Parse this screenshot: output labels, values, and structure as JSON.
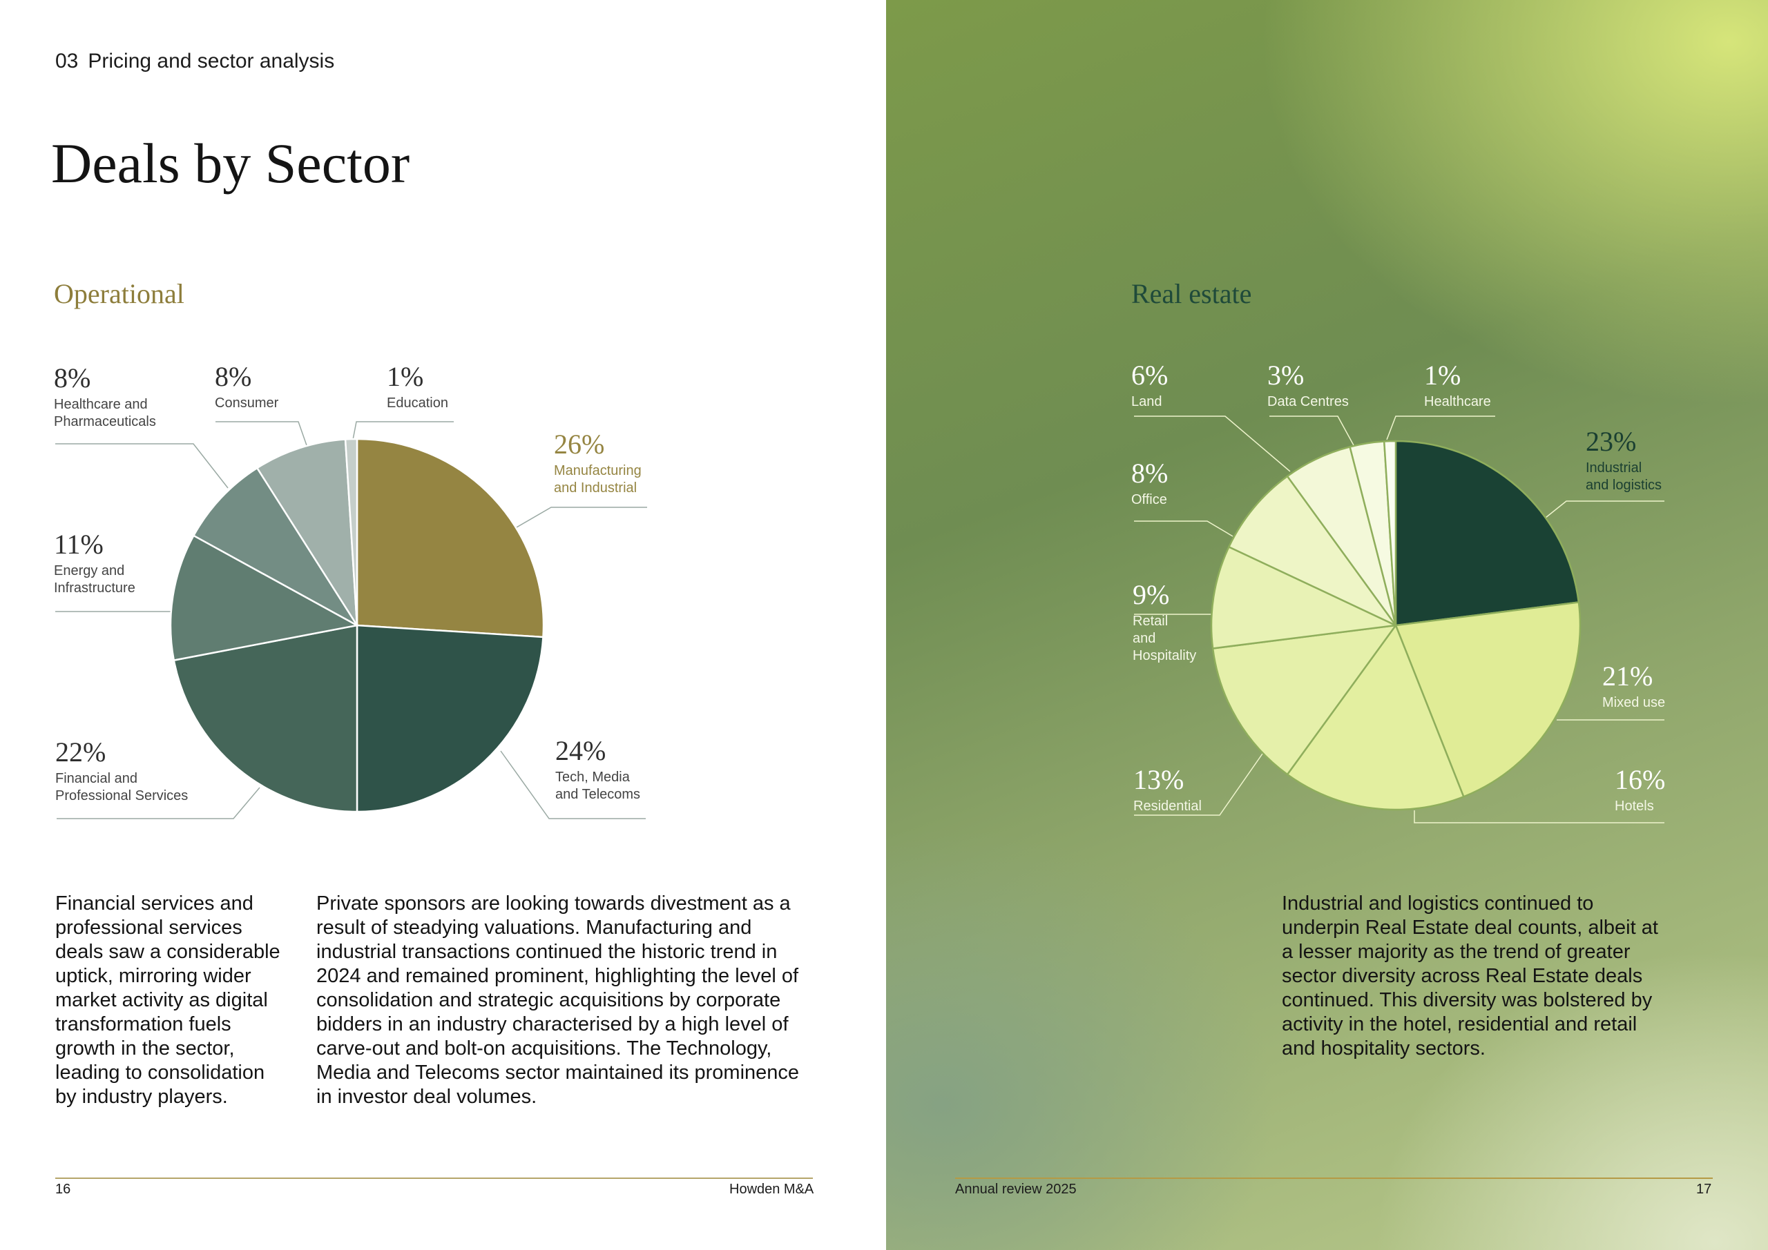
{
  "header": {
    "section_number": "03",
    "section_title": "Pricing and sector analysis"
  },
  "page_title": "Deals by Sector",
  "chart_data": [
    {
      "type": "pie",
      "title": "Operational",
      "unit": "%",
      "slices": [
        {
          "label": "Manufacturing and Industrial",
          "value": 26,
          "display": "26%",
          "lines": [
            "Manufacturing",
            "and Industrial"
          ],
          "color": "#958542"
        },
        {
          "label": "Tech, Media and Telecoms",
          "value": 24,
          "display": "24%",
          "lines": [
            "Tech, Media",
            "and Telecoms"
          ],
          "color": "#2f5349"
        },
        {
          "label": "Financial and Professional Services",
          "value": 22,
          "display": "22%",
          "lines": [
            "Financial and",
            "Professional Services"
          ],
          "color": "#456659"
        },
        {
          "label": "Energy and Infrastructure",
          "value": 11,
          "display": "11%",
          "lines": [
            "Energy and",
            "Infrastructure"
          ],
          "color": "#607d71"
        },
        {
          "label": "Healthcare and Pharmaceuticals",
          "value": 8,
          "display": "8%",
          "lines": [
            "Healthcare and",
            "Pharmaceuticals"
          ],
          "color": "#738d84"
        },
        {
          "label": "Consumer",
          "value": 8,
          "display": "8%",
          "lines": [
            "Consumer"
          ],
          "color": "#a0b0aa"
        },
        {
          "label": "Education",
          "value": 1,
          "display": "1%",
          "lines": [
            "Education"
          ],
          "color": "#c5ceca"
        }
      ]
    },
    {
      "type": "pie",
      "title": "Real estate",
      "unit": "%",
      "slices": [
        {
          "label": "Industrial and logistics",
          "value": 23,
          "display": "23%",
          "lines": [
            "Industrial",
            "and logistics"
          ],
          "color": "#1a4234"
        },
        {
          "label": "Mixed use",
          "value": 21,
          "display": "21%",
          "lines": [
            "Mixed use"
          ],
          "color": "#e0ec96"
        },
        {
          "label": "Hotels",
          "value": 16,
          "display": "16%",
          "lines": [
            "Hotels"
          ],
          "color": "#e3efa0"
        },
        {
          "label": "Residential",
          "value": 13,
          "display": "13%",
          "lines": [
            "Residential"
          ],
          "color": "#e5f0aa"
        },
        {
          "label": "Retail and Hospitality",
          "value": 9,
          "display": "9%",
          "lines": [
            "Retail",
            "and",
            "Hospitality"
          ],
          "color": "#e8f2b5"
        },
        {
          "label": "Office",
          "value": 8,
          "display": "8%",
          "lines": [
            "Office"
          ],
          "color": "#eef5c6"
        },
        {
          "label": "Land",
          "value": 6,
          "display": "6%",
          "lines": [
            "Land"
          ],
          "color": "#f3f8d8"
        },
        {
          "label": "Data Centres",
          "value": 3,
          "display": "3%",
          "lines": [
            "Data Centres"
          ],
          "color": "#f6fae2"
        },
        {
          "label": "Healthcare",
          "value": 1,
          "display": "1%",
          "lines": [
            "Healthcare"
          ],
          "color": "#fbfdf0"
        }
      ]
    }
  ],
  "body": {
    "op_col1": "Financial services and professional services deals saw a considerable uptick, mirroring wider market activity as digital transformation fuels growth in the sector, leading to consolidation by industry players.",
    "op_col2": "Private sponsors are looking towards divestment as a result of steadying valuations. Manufacturing and industrial transactions continued the historic trend in 2024 and remained prominent, highlighting the level of consolidation and strategic acquisitions by corporate bidders in an industry characterised by a high level of carve-out and bolt-on acquisitions. The Technology, Media and Telecoms sector maintained its prominence in investor deal volumes.",
    "re_text": "Industrial and logistics continued to underpin Real Estate deal counts, albeit at a lesser majority as the trend of greater sector diversity across Real Estate deals continued. This diversity was bolstered by activity in the hotel, residential and retail and hospitality sectors."
  },
  "footer": {
    "left_page_number": "16",
    "left_brand": "Howden M&A",
    "right_publication": "Annual review 2025",
    "right_page_number": "17"
  }
}
